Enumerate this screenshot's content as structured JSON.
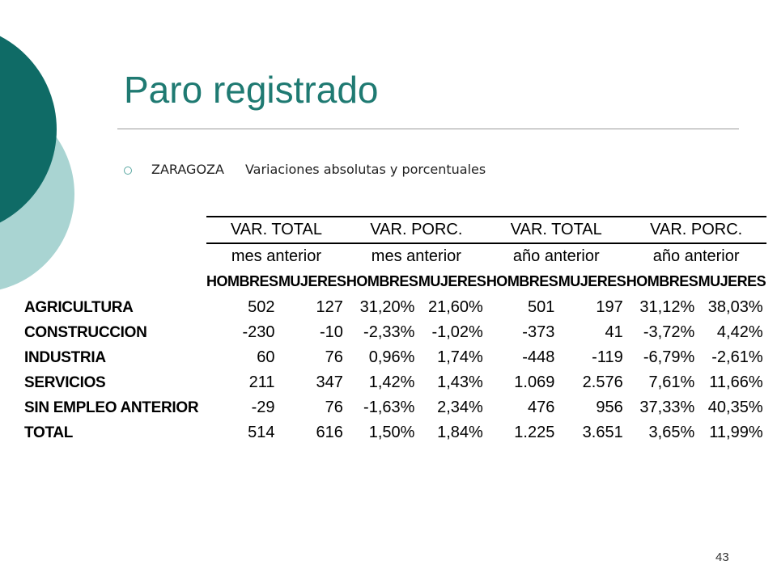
{
  "title": "Paro registrado",
  "subtitle": {
    "place": "ZARAGOZA",
    "description": "Variaciones absolutas y porcentuales"
  },
  "table": {
    "group_headers": [
      "VAR. TOTAL",
      "VAR. PORC.",
      "VAR. TOTAL",
      "VAR. PORC."
    ],
    "period_headers": [
      "mes anterior",
      "mes anterior",
      "año anterior",
      "año anterior"
    ],
    "column_headers": [
      "HOMBRES",
      "MUJERES",
      "HOMBRES",
      "MUJERES",
      "HOMBRES",
      "MUJERES",
      "HOMBRES",
      "MUJERES"
    ],
    "rows": [
      {
        "label": "AGRICULTURA",
        "values": [
          "502",
          "127",
          "31,20%",
          "21,60%",
          "501",
          "197",
          "31,12%",
          "38,03%"
        ]
      },
      {
        "label": "CONSTRUCCION",
        "values": [
          "-230",
          "-10",
          "-2,33%",
          "-1,02%",
          "-373",
          "41",
          "-3,72%",
          "4,42%"
        ]
      },
      {
        "label": "INDUSTRIA",
        "values": [
          "60",
          "76",
          "0,96%",
          "1,74%",
          "-448",
          "-119",
          "-6,79%",
          "-2,61%"
        ]
      },
      {
        "label": "SERVICIOS",
        "values": [
          "211",
          "347",
          "1,42%",
          "1,43%",
          "1.069",
          "2.576",
          "7,61%",
          "11,66%"
        ]
      },
      {
        "label": "SIN EMPLEO ANTERIOR",
        "values": [
          "-29",
          "76",
          "-1,63%",
          "2,34%",
          "476",
          "956",
          "37,33%",
          "40,35%"
        ]
      },
      {
        "label": "TOTAL",
        "values": [
          "514",
          "616",
          "1,50%",
          "1,84%",
          "1.225",
          "3.651",
          "3,65%",
          "11,99%"
        ]
      }
    ]
  },
  "page_number": "43",
  "colors": {
    "title": "#1f7a72",
    "deco_dark": "#0f6b66",
    "deco_light": "#a9d4d2",
    "bullet": "#5aa8a2"
  }
}
